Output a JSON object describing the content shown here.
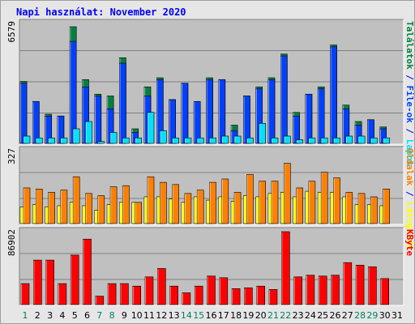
{
  "title": "Napi használat: November 2020",
  "colors": {
    "plot_bg": "#c0c0c0",
    "grid": "#808080",
    "hits": "#008040",
    "files": "#0040ff",
    "sites": "#ff8000",
    "pages": "#00e0ff",
    "visits": "#ffff00",
    "kbytes": "#ff0000",
    "weekday_label": "#000000",
    "weekend_label": "#00805c"
  },
  "chart_data": [
    {
      "type": "bar",
      "categories": [
        "1",
        "2",
        "3",
        "4",
        "5",
        "6",
        "7",
        "8",
        "9",
        "10",
        "11",
        "12",
        "13",
        "14",
        "15",
        "16",
        "17",
        "18",
        "19",
        "20",
        "21",
        "22",
        "23",
        "24",
        "25",
        "26",
        "27",
        "28",
        "29",
        "30",
        "31"
      ],
      "weekend_days": [
        "1",
        "7",
        "8",
        "14",
        "15",
        "21",
        "22",
        "28",
        "29"
      ],
      "ymax_label": "6579",
      "ylim": [
        0,
        6579
      ],
      "legend_right": [
        {
          "text": "Találatok",
          "color": "#008040"
        },
        {
          "sep": " / ",
          "color": "#0000ff"
        },
        {
          "text": "File-ok",
          "color": "#0040ff"
        },
        {
          "sep": " / ",
          "color": "#0000ff"
        },
        {
          "text": "Lapok",
          "color": "#00e0ff"
        }
      ],
      "series": [
        {
          "name": "Találatok",
          "values": [
            3400,
            2300,
            1600,
            1500,
            6400,
            3500,
            2700,
            2600,
            4700,
            800,
            3100,
            3600,
            2400,
            3300,
            2200,
            3600,
            3500,
            1000,
            2600,
            3100,
            3600,
            4900,
            1700,
            2700,
            3100,
            5400,
            2100,
            1200,
            1300,
            900,
            null
          ]
        },
        {
          "name": "File-ok",
          "values": [
            3300,
            2300,
            1500,
            1500,
            5600,
            3100,
            2600,
            1900,
            4400,
            600,
            2600,
            3500,
            2400,
            3300,
            2300,
            3500,
            3500,
            700,
            2600,
            3000,
            3500,
            4800,
            1500,
            2700,
            3000,
            5300,
            1900,
            1000,
            1300,
            800,
            null
          ]
        },
        {
          "name": "Lapok",
          "values": [
            400,
            300,
            300,
            300,
            800,
            1200,
            100,
            600,
            300,
            300,
            1700,
            700,
            300,
            300,
            300,
            300,
            400,
            400,
            300,
            1100,
            300,
            400,
            200,
            300,
            300,
            300,
            400,
            400,
            300,
            300,
            null
          ]
        }
      ]
    },
    {
      "type": "bar",
      "categories": [
        "1",
        "2",
        "3",
        "4",
        "5",
        "6",
        "7",
        "8",
        "9",
        "10",
        "11",
        "12",
        "13",
        "14",
        "15",
        "16",
        "17",
        "18",
        "19",
        "20",
        "21",
        "22",
        "23",
        "24",
        "25",
        "26",
        "27",
        "28",
        "29",
        "30",
        "31"
      ],
      "ymax_label": "327",
      "ylim": [
        0,
        327
      ],
      "legend_right": [
        {
          "text": "Oldalak",
          "color": "#ff8000"
        },
        {
          "sep": " / ",
          "color": "#0000ff"
        },
        {
          "text": "Látogatók",
          "color": "#ffff00"
        }
      ],
      "series": [
        {
          "name": "Oldalak",
          "values": [
            160,
            155,
            140,
            150,
            210,
            135,
            125,
            165,
            170,
            95,
            210,
            185,
            175,
            135,
            150,
            185,
            200,
            140,
            220,
            190,
            190,
            270,
            160,
            190,
            230,
            205,
            140,
            135,
            120,
            155,
            null
          ]
        },
        {
          "name": "Látogatók",
          "values": [
            75,
            85,
            75,
            80,
            95,
            80,
            60,
            85,
            95,
            95,
            120,
            120,
            110,
            95,
            120,
            105,
            120,
            100,
            125,
            120,
            135,
            140,
            120,
            145,
            140,
            140,
            120,
            85,
            85,
            80,
            null
          ]
        }
      ]
    },
    {
      "type": "bar",
      "categories": [
        "1",
        "2",
        "3",
        "4",
        "5",
        "6",
        "7",
        "8",
        "9",
        "10",
        "11",
        "12",
        "13",
        "14",
        "15",
        "16",
        "17",
        "18",
        "19",
        "20",
        "21",
        "22",
        "23",
        "24",
        "25",
        "26",
        "27",
        "28",
        "29",
        "30",
        "31"
      ],
      "ymax_label": "86902",
      "ylim": [
        0,
        86902
      ],
      "legend_right": [
        {
          "text": "KByte",
          "color": "#ff0000"
        }
      ],
      "series": [
        {
          "name": "KByte",
          "values": [
            25000,
            53000,
            53000,
            25000,
            59000,
            78000,
            10000,
            25000,
            25000,
            22000,
            33000,
            43000,
            22000,
            14000,
            22000,
            34000,
            32000,
            19000,
            20000,
            22000,
            18000,
            86902,
            33000,
            35000,
            34000,
            35000,
            50000,
            47000,
            45000,
            31000,
            null
          ]
        }
      ]
    }
  ]
}
